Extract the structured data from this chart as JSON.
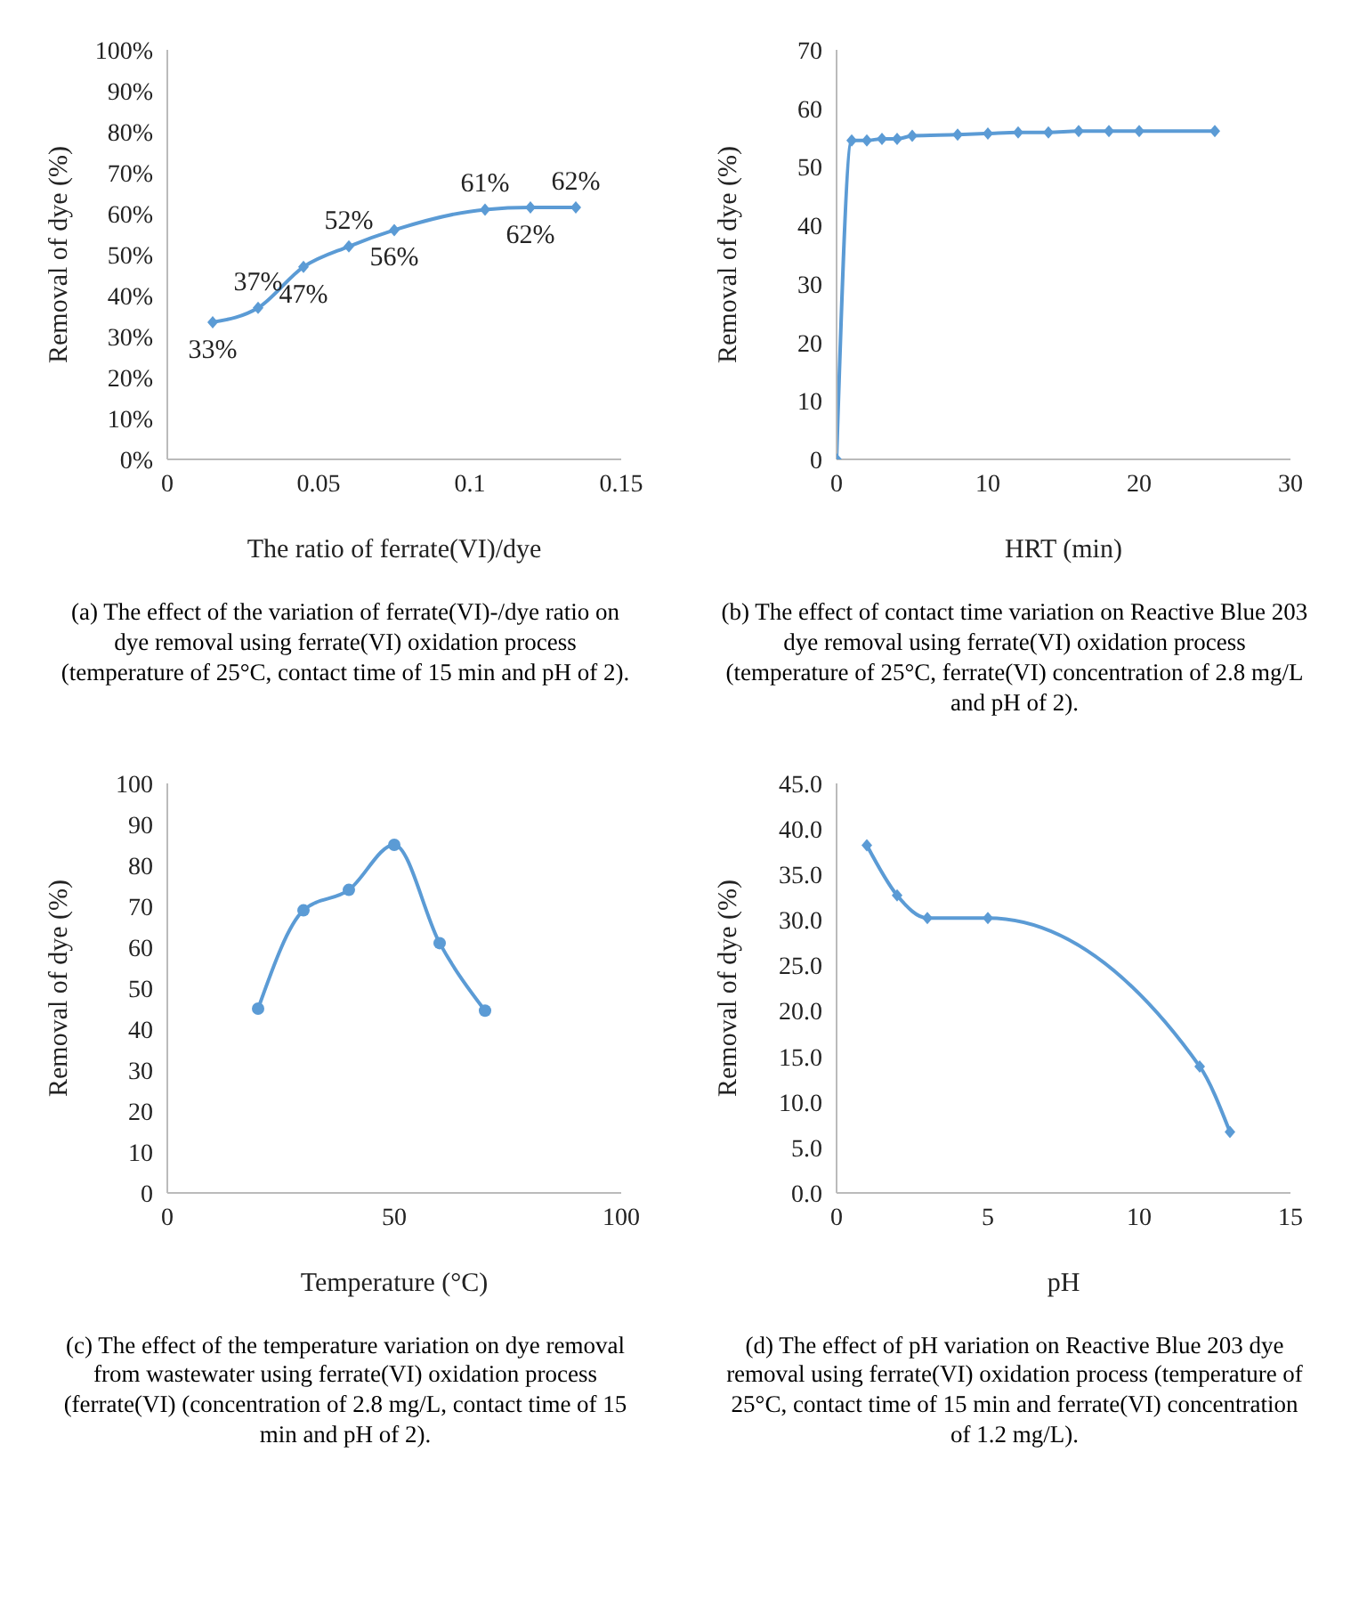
{
  "chart_data": [
    {
      "type": "line",
      "xlabel": "The ratio of ferrate(VI)/dye",
      "ylabel": "Removal of dye (%)",
      "x": [
        0.015,
        0.03,
        0.045,
        0.06,
        0.075,
        0.105,
        0.12,
        0.135
      ],
      "series": [
        {
          "color": "#5b9bd5",
          "values": [
            33.5,
            37,
            47,
            52,
            56,
            61,
            61.5,
            61.5
          ],
          "value_labels": [
            "33%",
            "37%",
            "47%",
            "52%",
            "56%",
            "61%",
            "62%",
            "62%"
          ]
        }
      ],
      "xlim": [
        0,
        0.15
      ],
      "xticks": [
        0,
        0.05,
        0.1,
        0.15
      ],
      "ylim": [
        0,
        100
      ],
      "yticks": [
        {
          "value": 0,
          "label": "0%"
        },
        {
          "value": 10,
          "label": "10%"
        },
        {
          "value": 20,
          "label": "20%"
        },
        {
          "value": 30,
          "label": "30%"
        },
        {
          "value": 40,
          "label": "40%"
        },
        {
          "value": 50,
          "label": "50%"
        },
        {
          "value": 60,
          "label": "60%"
        },
        {
          "value": 70,
          "label": "70%"
        },
        {
          "value": 80,
          "label": "80%"
        },
        {
          "value": 90,
          "label": "90%"
        },
        {
          "value": 100,
          "label": "100%"
        }
      ],
      "grid": false,
      "marker": "diamond",
      "annotations": [
        "(a) The effect of the variation of ferrate(VI)-/dye ratio on dye removal using ferrate(VI) oxidation process (temperature of 25°C, contact time of 15 min and pH of 2)."
      ]
    },
    {
      "type": "line",
      "xlabel": "HRT (min)",
      "ylabel": "Removal of dye (%)",
      "x": [
        0,
        1,
        2,
        3,
        4,
        5,
        8,
        10,
        12,
        14,
        16,
        18,
        20,
        25
      ],
      "series": [
        {
          "color": "#5b9bd5",
          "values": [
            0,
            54.5,
            54.5,
            54.8,
            54.8,
            55.3,
            55.5,
            55.7,
            55.9,
            55.9,
            56.1,
            56.1,
            56.1,
            56.1
          ]
        }
      ],
      "xlim": [
        0,
        30
      ],
      "xticks": [
        0,
        10,
        20,
        30
      ],
      "ylim": [
        0,
        70
      ],
      "yticks": [
        0,
        10,
        20,
        30,
        40,
        50,
        60,
        70
      ],
      "grid": false,
      "marker": "diamond",
      "annotations": [
        "(b) The effect of contact time variation on Reactive Blue 203 dye removal using ferrate(VI) oxidation process (temperature of 25°C, ferrate(VI) concentration of 2.8 mg/L and pH of 2)."
      ]
    },
    {
      "type": "line",
      "xlabel": "Temperature (°C)",
      "ylabel": "Removal of dye (%)",
      "x": [
        20,
        30,
        40,
        50,
        60,
        70
      ],
      "series": [
        {
          "color": "#5b9bd5",
          "values": [
            45,
            69,
            74,
            85,
            61,
            44.5
          ]
        }
      ],
      "xlim": [
        0,
        100
      ],
      "xticks": [
        0,
        50,
        100
      ],
      "ylim": [
        0,
        100
      ],
      "yticks": [
        0,
        10,
        20,
        30,
        40,
        50,
        60,
        70,
        80,
        90,
        100
      ],
      "grid": false,
      "marker": "circle",
      "annotations": [
        "(c) The effect of the temperature variation on dye removal from wastewater using ferrate(VI) oxidation process (ferrate(VI)   (concentration of 2.8 mg/L, contact time of 15 min and pH of 2)."
      ]
    },
    {
      "type": "line",
      "xlabel": "pH",
      "ylabel": "Removal of dye (%)",
      "x": [
        1,
        2,
        3,
        5,
        12,
        13
      ],
      "series": [
        {
          "color": "#5b9bd5",
          "values": [
            38.2,
            32.7,
            30.2,
            30.2,
            13.9,
            6.7
          ]
        }
      ],
      "xlim": [
        0,
        15
      ],
      "xticks": [
        0,
        5,
        10,
        15
      ],
      "ylim": [
        0,
        45
      ],
      "yticks": [
        {
          "value": 0,
          "label": "0.0"
        },
        {
          "value": 5,
          "label": "5.0"
        },
        {
          "value": 10,
          "label": "10.0"
        },
        {
          "value": 15,
          "label": "15.0"
        },
        {
          "value": 20,
          "label": "20.0"
        },
        {
          "value": 25,
          "label": "25.0"
        },
        {
          "value": 30,
          "label": "30.0"
        },
        {
          "value": 35,
          "label": "35.0"
        },
        {
          "value": 40,
          "label": "40.0"
        },
        {
          "value": 45,
          "label": "45.0"
        }
      ],
      "grid": false,
      "marker": "diamond",
      "annotations": [
        "(d) The effect of pH variation on Reactive Blue 203 dye removal using ferrate(VI) oxidation process (temperature of 25°C, contact time of 15 min and ferrate(VI) concentration of 1.2 mg/L)."
      ]
    }
  ]
}
